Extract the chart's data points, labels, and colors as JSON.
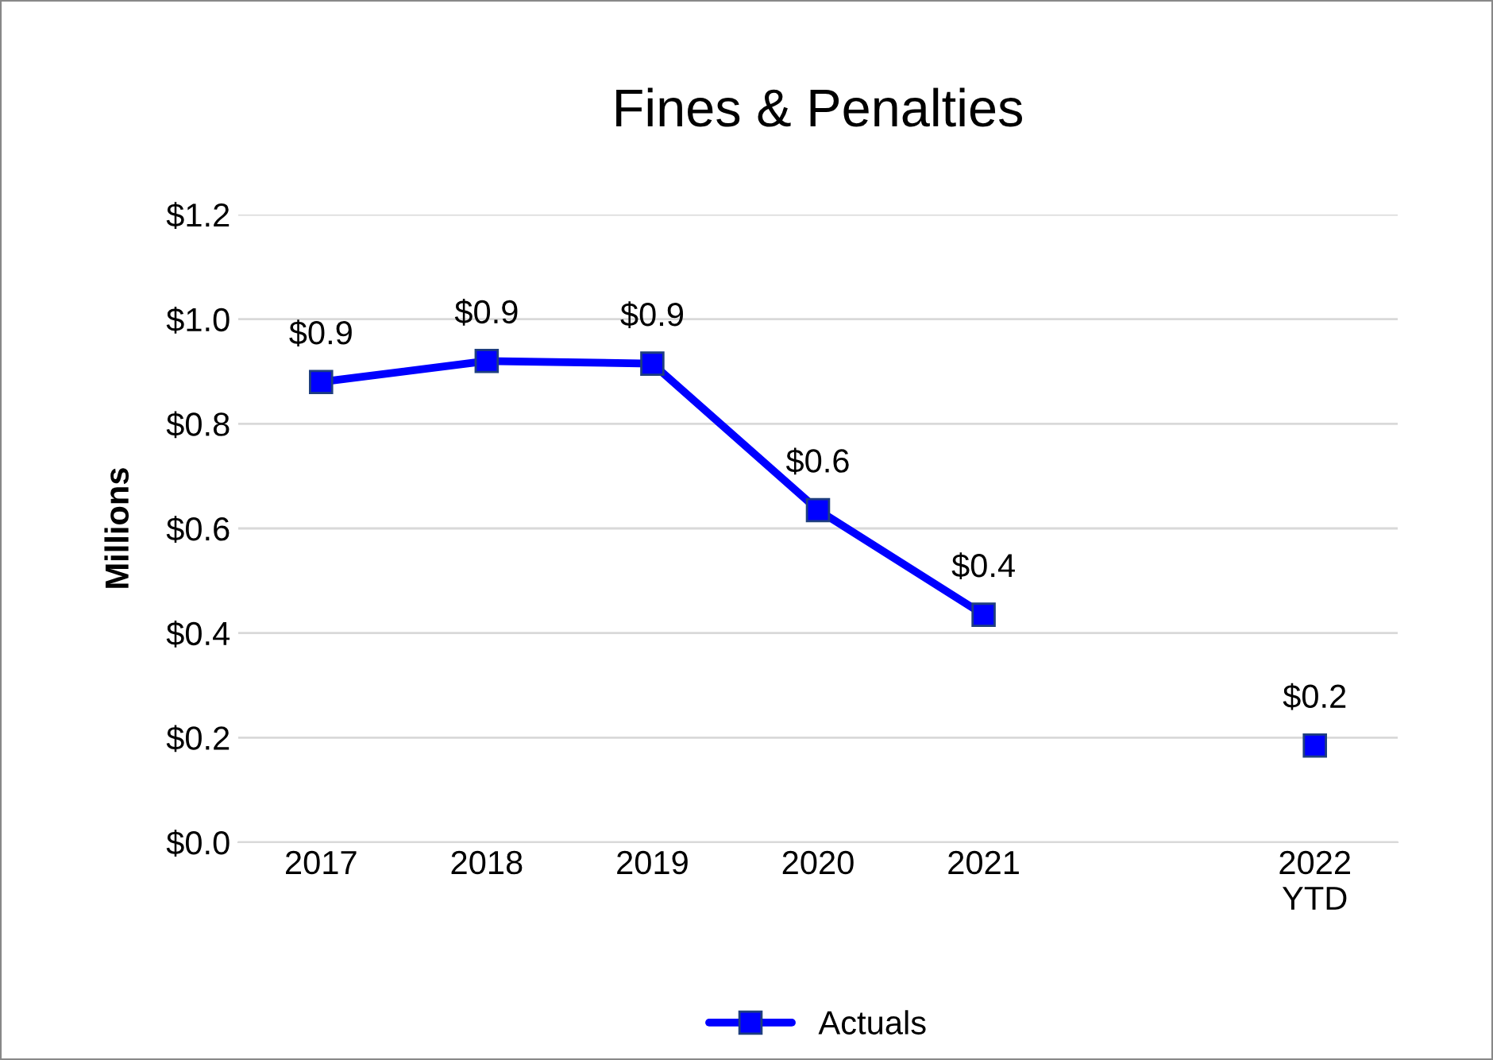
{
  "chart_data": {
    "type": "line",
    "title": "Fines & Penalties",
    "ylabel": "Millions",
    "categories": [
      "2017",
      "2018",
      "2019",
      "2020",
      "2021",
      null,
      "2022\nYTD"
    ],
    "series": [
      {
        "name": "Actuals",
        "color": "#0000ff",
        "values": [
          0.88,
          0.92,
          0.915,
          0.635,
          0.435,
          null,
          0.185
        ],
        "value_labels": [
          "$0.9",
          "$0.9",
          "$0.9",
          "$0.6",
          "$0.4",
          null,
          "$0.2"
        ]
      }
    ],
    "ylim": [
      0,
      1.2
    ],
    "yticks": [
      {
        "value": 0,
        "label": "$0.0"
      },
      {
        "value": 0.2,
        "label": "$0.2"
      },
      {
        "value": 0.4,
        "label": "$0.4"
      },
      {
        "value": 0.6,
        "label": "$0.6"
      },
      {
        "value": 0.8,
        "label": "$0.8"
      },
      {
        "value": 1.0,
        "label": "$1.0"
      },
      {
        "value": 1.2,
        "label": "$1.2"
      }
    ],
    "grid": "y",
    "legend": "bottom",
    "marker": "square",
    "line_style": "solid"
  }
}
